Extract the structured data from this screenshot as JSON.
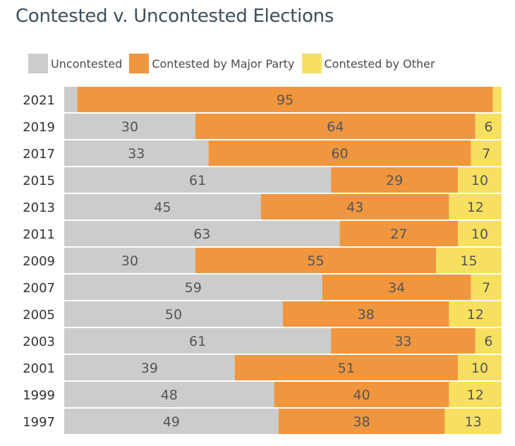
{
  "chart_data": {
    "type": "bar",
    "orientation": "horizontal",
    "stacked": true,
    "title": "Contested v. Uncontested Elections",
    "legend_position": "top",
    "categories": [
      "2021",
      "2019",
      "2017",
      "2015",
      "2013",
      "2011",
      "2009",
      "2007",
      "2005",
      "2003",
      "2001",
      "1999",
      "1997"
    ],
    "series": [
      {
        "name": "Uncontested",
        "color": "#cccccc",
        "values": [
          3,
          30,
          33,
          61,
          45,
          63,
          30,
          59,
          50,
          61,
          39,
          48,
          49
        ],
        "labels": [
          "",
          "30",
          "33",
          "61",
          "45",
          "63",
          "30",
          "59",
          "50",
          "61",
          "39",
          "48",
          "49"
        ]
      },
      {
        "name": "Contested by Major Party",
        "color": "#f0963f",
        "values": [
          95,
          64,
          60,
          29,
          43,
          27,
          55,
          34,
          38,
          33,
          51,
          40,
          38
        ],
        "labels": [
          "95",
          "64",
          "60",
          "29",
          "43",
          "27",
          "55",
          "34",
          "38",
          "33",
          "51",
          "40",
          "38"
        ]
      },
      {
        "name": "Contested by Other",
        "color": "#f7e060",
        "values": [
          2,
          6,
          7,
          10,
          12,
          10,
          15,
          7,
          12,
          6,
          10,
          12,
          13
        ],
        "labels": [
          "",
          "6",
          "7",
          "10",
          "12",
          "10",
          "15",
          "7",
          "12",
          "6",
          "10",
          "12",
          "13"
        ]
      }
    ]
  }
}
